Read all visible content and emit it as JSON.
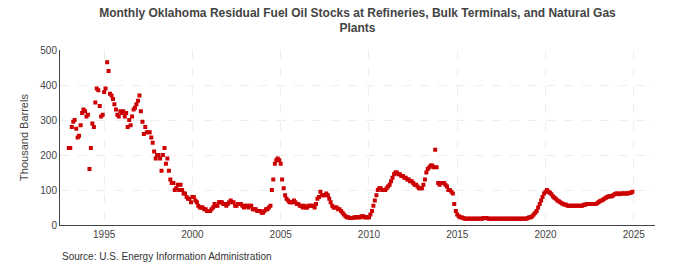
{
  "chart_data": {
    "type": "scatter",
    "title": "Monthly Oklahoma Residual Fuel Oil Stocks at Refineries, Bulk Terminals, and Natural Gas\nPlants",
    "ylabel": "Thousand Barrels",
    "annotations": [
      "Source: U.S. Energy Information Administration"
    ],
    "color": "#cc0000",
    "marker": "square",
    "grid": true,
    "xlim": [
      1992.5,
      2026.2
    ],
    "xticks": [
      1995,
      2000,
      2005,
      2010,
      2015,
      2020,
      2025
    ],
    "ylim": [
      0,
      500
    ],
    "yticks": [
      0,
      100,
      200,
      300,
      400,
      500
    ],
    "x": [
      1993.0,
      1993.08,
      1993.17,
      1993.25,
      1993.33,
      1993.42,
      1993.5,
      1993.58,
      1993.67,
      1993.75,
      1993.83,
      1993.92,
      1994.0,
      1994.08,
      1994.17,
      1994.25,
      1994.33,
      1994.42,
      1994.5,
      1994.58,
      1994.67,
      1994.75,
      1994.83,
      1994.92,
      1995.0,
      1995.08,
      1995.17,
      1995.25,
      1995.33,
      1995.42,
      1995.5,
      1995.58,
      1995.67,
      1995.75,
      1995.83,
      1995.92,
      1996.0,
      1996.08,
      1996.17,
      1996.25,
      1996.33,
      1996.42,
      1996.5,
      1996.58,
      1996.67,
      1996.75,
      1996.83,
      1996.92,
      1997.0,
      1997.08,
      1997.17,
      1997.25,
      1997.33,
      1997.42,
      1997.5,
      1997.58,
      1997.67,
      1997.75,
      1997.83,
      1997.92,
      1998.0,
      1998.08,
      1998.17,
      1998.25,
      1998.33,
      1998.42,
      1998.5,
      1998.58,
      1998.67,
      1998.75,
      1998.83,
      1998.92,
      1999.0,
      1999.08,
      1999.17,
      1999.25,
      1999.33,
      1999.42,
      1999.5,
      1999.58,
      1999.67,
      1999.75,
      1999.83,
      1999.92,
      2000.0,
      2000.08,
      2000.17,
      2000.25,
      2000.33,
      2000.42,
      2000.5,
      2000.58,
      2000.67,
      2000.75,
      2000.83,
      2000.92,
      2001.0,
      2001.08,
      2001.17,
      2001.25,
      2001.33,
      2001.42,
      2001.5,
      2001.58,
      2001.67,
      2001.75,
      2001.83,
      2001.92,
      2002.0,
      2002.08,
      2002.17,
      2002.25,
      2002.33,
      2002.42,
      2002.5,
      2002.58,
      2002.67,
      2002.75,
      2002.83,
      2002.92,
      2003.0,
      2003.08,
      2003.17,
      2003.25,
      2003.33,
      2003.42,
      2003.5,
      2003.58,
      2003.67,
      2003.75,
      2003.83,
      2003.92,
      2004.0,
      2004.08,
      2004.17,
      2004.25,
      2004.33,
      2004.42,
      2004.5,
      2004.58,
      2004.67,
      2004.75,
      2004.83,
      2004.92,
      2005.0,
      2005.08,
      2005.17,
      2005.25,
      2005.33,
      2005.42,
      2005.5,
      2005.58,
      2005.67,
      2005.75,
      2005.83,
      2005.92,
      2006.0,
      2006.08,
      2006.17,
      2006.25,
      2006.33,
      2006.42,
      2006.5,
      2006.58,
      2006.67,
      2006.75,
      2006.83,
      2006.92,
      2007.0,
      2007.08,
      2007.17,
      2007.25,
      2007.33,
      2007.42,
      2007.5,
      2007.58,
      2007.67,
      2007.75,
      2007.83,
      2007.92,
      2008.0,
      2008.08,
      2008.17,
      2008.25,
      2008.33,
      2008.42,
      2008.5,
      2008.58,
      2008.67,
      2008.75,
      2008.83,
      2008.92,
      2009.0,
      2009.08,
      2009.17,
      2009.25,
      2009.33,
      2009.42,
      2009.5,
      2009.58,
      2009.67,
      2009.75,
      2009.83,
      2009.92,
      2010.0,
      2010.08,
      2010.17,
      2010.25,
      2010.33,
      2010.42,
      2010.5,
      2010.58,
      2010.67,
      2010.75,
      2010.83,
      2010.92,
      2011.0,
      2011.08,
      2011.17,
      2011.25,
      2011.33,
      2011.42,
      2011.5,
      2011.58,
      2011.67,
      2011.75,
      2011.83,
      2011.92,
      2012.0,
      2012.08,
      2012.17,
      2012.25,
      2012.33,
      2012.42,
      2012.5,
      2012.58,
      2012.67,
      2012.75,
      2012.83,
      2012.92,
      2013.0,
      2013.08,
      2013.17,
      2013.25,
      2013.33,
      2013.42,
      2013.5,
      2013.58,
      2013.67,
      2013.75,
      2013.83,
      2013.92,
      2014.0,
      2014.08,
      2014.17,
      2014.25,
      2014.33,
      2014.42,
      2014.5,
      2014.58,
      2014.67,
      2014.75,
      2014.83,
      2014.92,
      2015.0,
      2015.08,
      2015.17,
      2015.25,
      2015.33,
      2015.42,
      2015.5,
      2015.58,
      2015.67,
      2015.75,
      2015.83,
      2015.92,
      2016.0,
      2016.08,
      2016.17,
      2016.25,
      2016.33,
      2016.42,
      2016.5,
      2016.58,
      2016.67,
      2016.75,
      2016.83,
      2016.92,
      2017.0,
      2017.08,
      2017.17,
      2017.25,
      2017.33,
      2017.42,
      2017.5,
      2017.58,
      2017.67,
      2017.75,
      2017.83,
      2017.92,
      2018.0,
      2018.08,
      2018.17,
      2018.25,
      2018.33,
      2018.42,
      2018.5,
      2018.58,
      2018.67,
      2018.75,
      2018.83,
      2018.92,
      2019.0,
      2019.08,
      2019.17,
      2019.25,
      2019.33,
      2019.42,
      2019.5,
      2019.58,
      2019.67,
      2019.75,
      2019.83,
      2019.92,
      2020.0,
      2020.08,
      2020.17,
      2020.25,
      2020.33,
      2020.42,
      2020.5,
      2020.58,
      2020.67,
      2020.75,
      2020.83,
      2020.92,
      2021.0,
      2021.08,
      2021.17,
      2021.25,
      2021.33,
      2021.42,
      2021.5,
      2021.58,
      2021.67,
      2021.75,
      2021.83,
      2021.92,
      2022.0,
      2022.08,
      2022.17,
      2022.25,
      2022.33,
      2022.42,
      2022.5,
      2022.58,
      2022.67,
      2022.75,
      2022.83,
      2022.92,
      2023.0,
      2023.08,
      2023.17,
      2023.25,
      2023.33,
      2023.42,
      2023.5,
      2023.58,
      2023.67,
      2023.75,
      2023.83,
      2023.92,
      2024.0,
      2024.08,
      2024.17,
      2024.25,
      2024.33,
      2024.42,
      2024.5,
      2024.58,
      2024.67,
      2024.75,
      2024.83,
      2024.92
    ],
    "values": [
      220,
      220,
      280,
      295,
      300,
      275,
      250,
      255,
      285,
      320,
      330,
      325,
      310,
      315,
      160,
      220,
      290,
      280,
      350,
      390,
      385,
      340,
      310,
      315,
      380,
      390,
      465,
      440,
      375,
      370,
      360,
      345,
      330,
      315,
      310,
      325,
      320,
      325,
      310,
      320,
      280,
      300,
      285,
      310,
      330,
      335,
      345,
      355,
      370,
      325,
      295,
      260,
      280,
      265,
      265,
      265,
      250,
      235,
      210,
      190,
      200,
      200,
      190,
      155,
      200,
      220,
      175,
      190,
      155,
      130,
      120,
      120,
      100,
      105,
      115,
      100,
      115,
      100,
      90,
      90,
      80,
      75,
      75,
      65,
      80,
      80,
      70,
      65,
      55,
      50,
      50,
      50,
      45,
      45,
      40,
      40,
      40,
      45,
      50,
      60,
      55,
      55,
      65,
      65,
      65,
      60,
      60,
      55,
      60,
      65,
      70,
      65,
      65,
      55,
      55,
      60,
      60,
      60,
      55,
      50,
      55,
      55,
      50,
      55,
      55,
      45,
      45,
      45,
      40,
      40,
      40,
      35,
      35,
      40,
      45,
      45,
      50,
      55,
      100,
      130,
      175,
      185,
      190,
      185,
      175,
      130,
      105,
      85,
      75,
      70,
      65,
      65,
      65,
      70,
      65,
      60,
      60,
      55,
      55,
      50,
      55,
      50,
      50,
      55,
      55,
      55,
      55,
      50,
      60,
      75,
      80,
      95,
      85,
      85,
      85,
      90,
      85,
      75,
      65,
      55,
      50,
      50,
      50,
      45,
      45,
      40,
      35,
      30,
      25,
      22,
      22,
      20,
      20,
      20,
      22,
      22,
      22,
      22,
      22,
      25,
      25,
      22,
      22,
      22,
      22,
      30,
      40,
      55,
      70,
      85,
      100,
      105,
      105,
      100,
      100,
      100,
      105,
      110,
      115,
      125,
      135,
      145,
      150,
      150,
      145,
      145,
      140,
      140,
      135,
      135,
      130,
      130,
      125,
      125,
      120,
      115,
      115,
      110,
      105,
      105,
      105,
      115,
      130,
      150,
      160,
      165,
      170,
      170,
      165,
      215,
      165,
      120,
      115,
      120,
      120,
      120,
      115,
      110,
      100,
      100,
      95,
      90,
      60,
      40,
      30,
      25,
      22,
      22,
      20,
      18,
      18,
      18,
      18,
      18,
      18,
      18,
      18,
      18,
      18,
      18,
      18,
      18,
      20,
      20,
      20,
      18,
      18,
      18,
      18,
      18,
      18,
      18,
      18,
      18,
      18,
      18,
      18,
      18,
      18,
      18,
      18,
      18,
      18,
      18,
      18,
      18,
      18,
      18,
      18,
      18,
      18,
      18,
      20,
      22,
      22,
      25,
      30,
      35,
      40,
      50,
      60,
      70,
      80,
      90,
      95,
      100,
      95,
      92,
      88,
      82,
      78,
      75,
      70,
      68,
      65,
      62,
      60,
      58,
      58,
      55,
      55,
      55,
      55,
      55,
      55,
      55,
      55,
      55,
      55,
      55,
      58,
      58,
      60,
      60,
      60,
      60,
      60,
      60,
      60,
      62,
      65,
      68,
      70,
      72,
      75,
      78,
      80,
      82,
      82,
      82,
      85,
      88,
      90,
      90,
      88,
      90,
      90,
      90,
      90,
      90,
      90,
      92,
      92,
      95
    ]
  }
}
